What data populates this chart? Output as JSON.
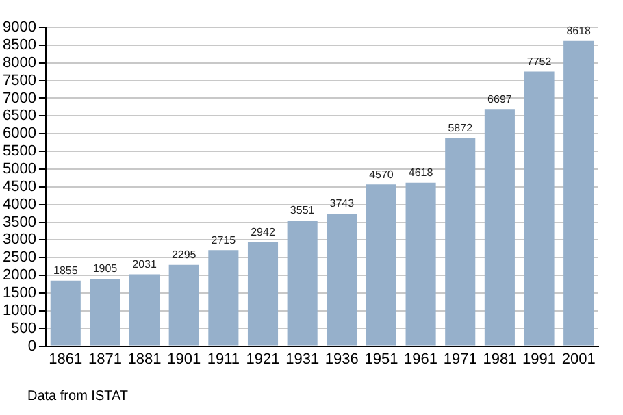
{
  "chart_data": {
    "type": "bar",
    "categories": [
      "1861",
      "1871",
      "1881",
      "1901",
      "1911",
      "1921",
      "1931",
      "1936",
      "1951",
      "1961",
      "1971",
      "1981",
      "1991",
      "2001"
    ],
    "values": [
      1855,
      1905,
      2031,
      2295,
      2715,
      2942,
      3551,
      3743,
      4570,
      4618,
      5872,
      6697,
      7752,
      8618
    ],
    "color": "#96b0cb",
    "data_labels": true,
    "ylim": [
      0,
      9000
    ],
    "yticks": [
      0,
      500,
      1000,
      1500,
      2000,
      2500,
      3000,
      3500,
      4000,
      4500,
      5000,
      5500,
      6000,
      6500,
      7000,
      7500,
      8000,
      8500,
      9000
    ],
    "grid": "y",
    "legend": false,
    "annotations": [
      "Data from ISTAT"
    ]
  }
}
